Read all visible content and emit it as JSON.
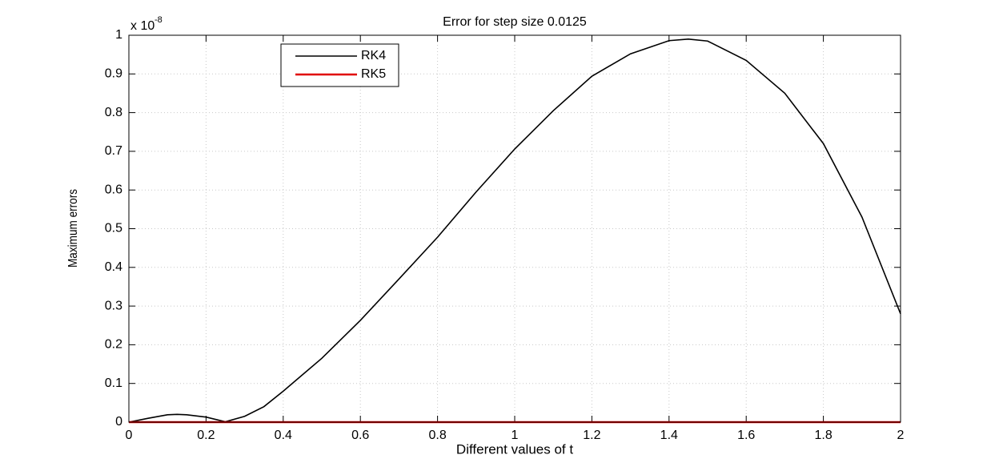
{
  "chart_data": {
    "type": "line",
    "title": "Error for step size 0.0125",
    "x_label": "Different values of t",
    "y_label": "Maximum errors",
    "y_multiplier": "x 10",
    "y_multiplier_exponent": "-8",
    "x": [
      0,
      0.05,
      0.1,
      0.125,
      0.15,
      0.2,
      0.25,
      0.3,
      0.35,
      0.4,
      0.5,
      0.6,
      0.7,
      0.8,
      0.9,
      1.0,
      1.1,
      1.2,
      1.3,
      1.4,
      1.45,
      1.5,
      1.6,
      1.7,
      1.8,
      1.9,
      2.0
    ],
    "series": [
      {
        "name": "RK4",
        "color": "#000000",
        "values": [
          0,
          0.01,
          0.019,
          0.02,
          0.019,
          0.013,
          0.001,
          0.015,
          0.04,
          0.08,
          0.165,
          0.263,
          0.37,
          0.478,
          0.595,
          0.706,
          0.805,
          0.894,
          0.952,
          0.986,
          0.99,
          0.985,
          0.935,
          0.85,
          0.72,
          0.53,
          0.28
        ]
      },
      {
        "name": "RK5",
        "color": "#e00000",
        "values": [
          0,
          0,
          0,
          0,
          0,
          0,
          0,
          0,
          0,
          0,
          0,
          0,
          0,
          0,
          0,
          0,
          0,
          0,
          0,
          0,
          0,
          0,
          0,
          0,
          0,
          0,
          0
        ]
      }
    ],
    "xlim": [
      0,
      2
    ],
    "xticks": [
      0,
      0.2,
      0.4,
      0.6,
      0.8,
      1,
      1.2,
      1.4,
      1.6,
      1.8,
      2
    ],
    "ylim": [
      0,
      1
    ],
    "yticks": [
      0,
      0.1,
      0.2,
      0.3,
      0.4,
      0.5,
      0.6,
      0.7,
      0.8,
      0.9,
      1
    ],
    "grid": true,
    "legend": "upper left"
  }
}
